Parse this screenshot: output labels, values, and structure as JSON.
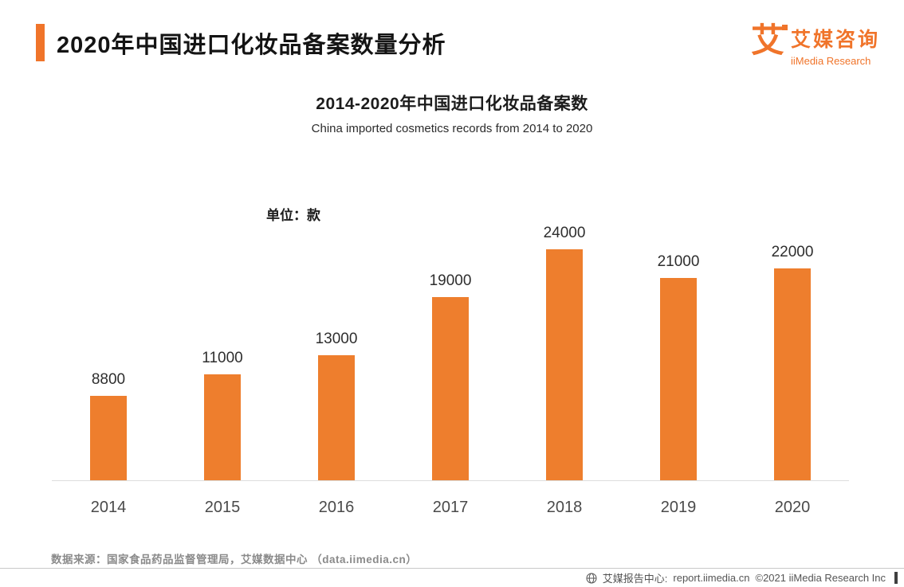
{
  "colors": {
    "accent": "#F0742A"
  },
  "header": {
    "title": "2020年中国进口化妆品备案数量分析",
    "logo": {
      "mark": "艾",
      "brand_cn": "艾媒咨询",
      "brand_en": "iiMedia Research"
    }
  },
  "chart": {
    "title": "2014-2020年中国进口化妆品备案数",
    "subtitle": "China imported cosmetics records from 2014 to 2020",
    "unit_label": "单位：款"
  },
  "chart_data": {
    "type": "bar",
    "title": "2014-2020年中国进口化妆品备案数",
    "subtitle": "China imported cosmetics records from 2014 to 2020",
    "categories": [
      "2014",
      "2015",
      "2016",
      "2017",
      "2018",
      "2019",
      "2020"
    ],
    "values": [
      8800,
      11000,
      13000,
      19000,
      24000,
      21000,
      22000
    ],
    "xlabel": "",
    "ylabel": "单位：款",
    "ylim": [
      0,
      26000
    ],
    "bar_color": "#EE7E2D",
    "grid": false,
    "legend": "none",
    "data_labels": true
  },
  "source": "数据来源：国家食品药品监督管理局，艾媒数据中心 （data.iimedia.cn）",
  "footer": {
    "report_center": "艾媒报告中心:",
    "url": "report.iimedia.cn",
    "copyright": "©2021  iiMedia Research Inc"
  }
}
